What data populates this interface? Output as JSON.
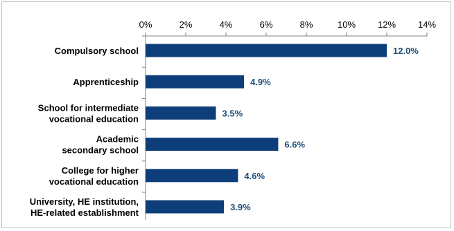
{
  "chart_data": {
    "type": "bar",
    "orientation": "horizontal",
    "categories": [
      [
        "Compulsory school"
      ],
      [
        "Apprenticeship"
      ],
      [
        "School for intermediate",
        "vocational education"
      ],
      [
        "Academic",
        "secondary school"
      ],
      [
        "College for higher",
        "vocational education"
      ],
      [
        "University, HE institution,",
        "HE-related establishment"
      ]
    ],
    "values": [
      12.0,
      4.9,
      3.5,
      6.6,
      4.6,
      3.9
    ],
    "data_labels": [
      "12.0%",
      "4.9%",
      "3.5%",
      "6.6%",
      "4.6%",
      "3.9%"
    ],
    "xlim": [
      0,
      14
    ],
    "x_ticks": [
      "0%",
      "2%",
      "4%",
      "6%",
      "8%",
      "10%",
      "12%",
      "14%"
    ],
    "x_axis_position": "top",
    "grid": false,
    "legend": "none",
    "title": "",
    "xlabel": "",
    "ylabel": "",
    "bar_color": "#0e3e7a",
    "label_color": "#1f4e79"
  }
}
